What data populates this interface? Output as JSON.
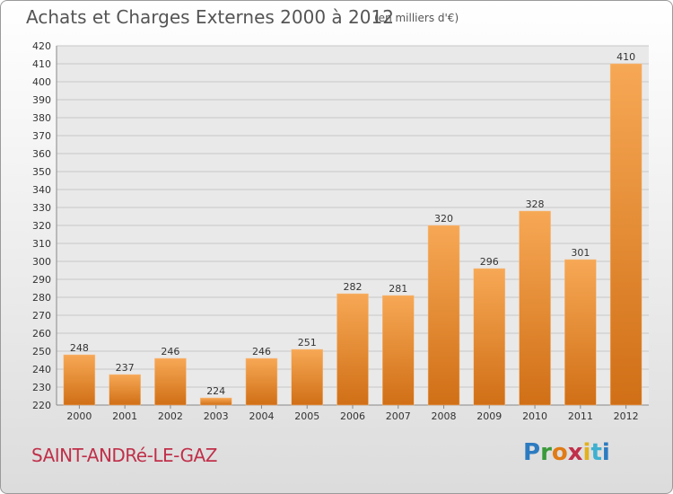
{
  "header": {
    "title": "Achats et Charges Externes 2000 à 2012",
    "unit": "(en milliers d'€)"
  },
  "footer": {
    "commune": "SAINT-ANDRé-LE-GAZ",
    "brand": "Proxiti"
  },
  "colors": {
    "bar_light": "#f7a855",
    "bar_dark": "#d06f16",
    "grid": "#c8c8c8",
    "plot_bg": "#e9e9e9"
  },
  "chart_data": {
    "type": "bar",
    "title": "Achats et Charges Externes 2000 à 2012",
    "subtitle": "(en milliers d'€)",
    "categories": [
      "2000",
      "2001",
      "2002",
      "2003",
      "2004",
      "2005",
      "2006",
      "2007",
      "2008",
      "2009",
      "2010",
      "2011",
      "2012"
    ],
    "values": [
      248,
      237,
      246,
      224,
      246,
      251,
      282,
      281,
      320,
      296,
      328,
      301,
      410
    ],
    "ylim": [
      220,
      420
    ],
    "ytick_step": 10,
    "grid": true,
    "legend": "none"
  }
}
